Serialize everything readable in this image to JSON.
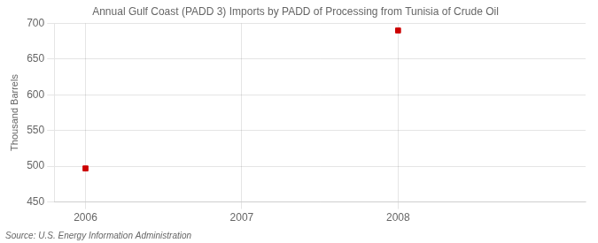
{
  "chart_data": {
    "type": "scatter",
    "title": "Annual Gulf Coast (PADD 3) Imports by PADD of Processing from Tunisia of Crude Oil",
    "ylabel": "Thousand Barrels",
    "annotations": [
      "Source: U.S. Energy Information Administration"
    ],
    "x": [
      2006,
      2008
    ],
    "values": [
      497,
      690
    ],
    "color": "#cc0000",
    "marker": "square",
    "xlim": [
      2005.8,
      2009.2
    ],
    "xticks": [
      2006,
      2007,
      2008
    ],
    "ylim": [
      450,
      700
    ],
    "yticks": [
      450,
      500,
      550,
      600,
      650,
      700
    ],
    "grid": true
  }
}
